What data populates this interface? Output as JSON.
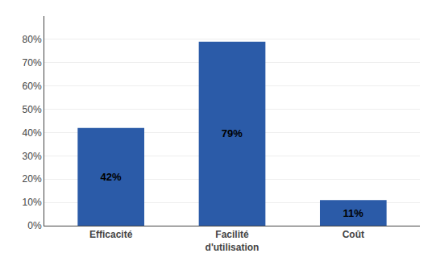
{
  "chart_data": {
    "type": "bar",
    "categories": [
      "Efficacité",
      "Facilité\nd'utilisation",
      "Coût"
    ],
    "values": [
      42,
      79,
      11
    ],
    "value_labels": [
      "42%",
      "79%",
      "11%"
    ],
    "data_labels": true,
    "color": "#2B5BA8",
    "ylim": [
      0,
      90
    ],
    "yticks": [
      {
        "value": 0,
        "label": "0%"
      },
      {
        "value": 10,
        "label": "10%"
      },
      {
        "value": 20,
        "label": "20%"
      },
      {
        "value": 30,
        "label": "30%"
      },
      {
        "value": 40,
        "label": "40%"
      },
      {
        "value": 50,
        "label": "50%"
      },
      {
        "value": 60,
        "label": "60%"
      },
      {
        "value": 70,
        "label": "70%"
      },
      {
        "value": 80,
        "label": "80%"
      }
    ],
    "grid": true
  }
}
